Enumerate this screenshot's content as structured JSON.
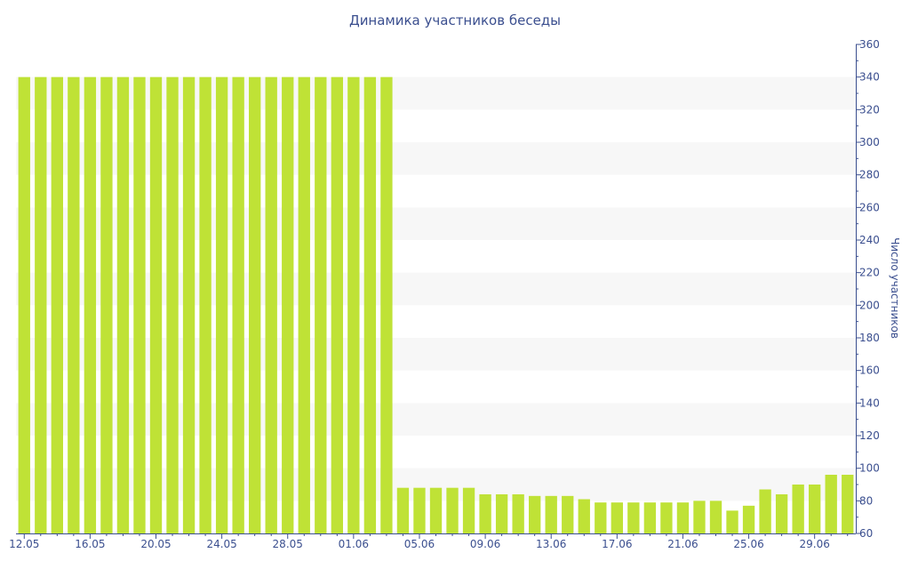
{
  "chart_data": {
    "type": "bar",
    "title": "Динамика участников беседы",
    "xlabel": "",
    "ylabel": "Число участников",
    "ylim": [
      60,
      360
    ],
    "y_ticks": [
      60,
      80,
      100,
      120,
      140,
      160,
      180,
      200,
      220,
      240,
      260,
      280,
      300,
      320,
      340,
      360
    ],
    "y_axis_side": "right",
    "grid": "alternating horizontal bands",
    "legend": "none",
    "categories": [
      "12.05",
      "13.05",
      "14.05",
      "15.05",
      "16.05",
      "17.05",
      "18.05",
      "19.05",
      "20.05",
      "21.05",
      "22.05",
      "23.05",
      "24.05",
      "25.05",
      "26.05",
      "27.05",
      "28.05",
      "29.05",
      "30.05",
      "31.05",
      "01.06",
      "02.06",
      "03.06",
      "04.06",
      "05.06",
      "06.06",
      "07.06",
      "08.06",
      "09.06",
      "10.06",
      "11.06",
      "12.06",
      "13.06",
      "14.06",
      "15.06",
      "16.06",
      "17.06",
      "18.06",
      "19.06",
      "20.06",
      "21.06",
      "22.06",
      "23.06",
      "24.06",
      "25.06",
      "26.06",
      "27.06",
      "28.06",
      "29.06",
      "30.06",
      "01.07"
    ],
    "x_tick_labels": [
      "12.05",
      "16.05",
      "20.05",
      "24.05",
      "28.05",
      "01.06",
      "05.06",
      "09.06",
      "13.06",
      "17.06",
      "21.06",
      "25.06",
      "29.06"
    ],
    "values": [
      340,
      340,
      340,
      340,
      340,
      340,
      340,
      340,
      340,
      340,
      340,
      340,
      340,
      340,
      340,
      340,
      340,
      340,
      340,
      340,
      340,
      340,
      340,
      88,
      88,
      88,
      88,
      88,
      84,
      84,
      84,
      83,
      83,
      83,
      81,
      79,
      79,
      79,
      79,
      79,
      79,
      80,
      80,
      74,
      77,
      87,
      84,
      90,
      90,
      96,
      96
    ],
    "colors": {
      "bar": "#bfe236",
      "band": "#f7f7f7",
      "text": "#3b4f8f",
      "axis": "#3b4f8f"
    }
  }
}
